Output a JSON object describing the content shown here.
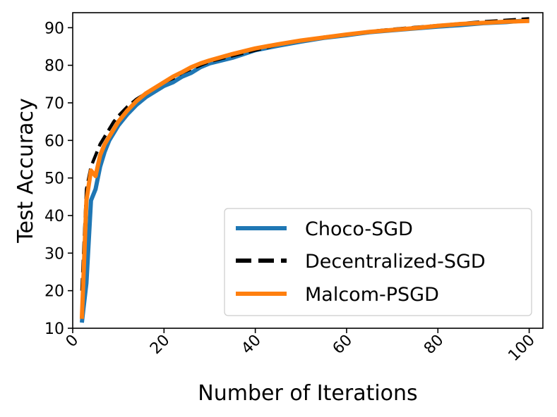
{
  "chart_data": {
    "type": "line",
    "title": "",
    "xlabel": "Number of Iterations",
    "ylabel": "Test Accuracy",
    "xlim": [
      0,
      103
    ],
    "ylim": [
      10,
      94
    ],
    "xticks": [
      0,
      20,
      40,
      60,
      80,
      100
    ],
    "yticks": [
      10,
      20,
      30,
      40,
      50,
      60,
      70,
      80,
      90
    ],
    "x_tick_rotation": "45 degrees",
    "grid": false,
    "legend_position": "lower-right",
    "x": [
      2,
      3,
      4,
      5,
      6,
      7,
      8,
      9,
      10,
      12,
      14,
      16,
      18,
      20,
      22,
      24,
      26,
      28,
      30,
      35,
      40,
      45,
      50,
      55,
      60,
      65,
      70,
      75,
      80,
      85,
      90,
      95,
      100
    ],
    "series": [
      {
        "name": "Choco-SGD",
        "color": "#1f77b4",
        "style": "solid",
        "values": [
          11.5,
          22,
          44,
          47,
          53,
          57,
          60,
          62,
          64,
          67,
          69.5,
          71.5,
          73,
          74.5,
          75.5,
          77,
          78,
          79.5,
          80.5,
          82,
          84,
          85.2,
          86.3,
          87.3,
          88,
          88.8,
          89.3,
          89.8,
          90.3,
          90.7,
          91.2,
          91.5,
          92
        ]
      },
      {
        "name": "Decentralized-SGD",
        "color": "#000000",
        "style": "dashed",
        "values": [
          20,
          47,
          53,
          56,
          59,
          61,
          63,
          65,
          66.5,
          69,
          71,
          72.5,
          74,
          75.5,
          76.5,
          78,
          79,
          80,
          81,
          82.5,
          84,
          85.5,
          86.5,
          87.5,
          88.2,
          89,
          89.6,
          90.1,
          90.6,
          91.1,
          91.6,
          92,
          92.4
        ]
      },
      {
        "name": "Malcom-PSGD",
        "color": "#ff7f0e",
        "style": "solid",
        "values": [
          12.5,
          44,
          52,
          50.5,
          56,
          59,
          61,
          63,
          65,
          68,
          70.5,
          72.5,
          74,
          75.5,
          77,
          78.2,
          79.5,
          80.5,
          81.3,
          83,
          84.5,
          85.6,
          86.6,
          87.4,
          88.2,
          88.9,
          89.4,
          89.9,
          90.5,
          91,
          91.3,
          91.6,
          91.8
        ]
      }
    ]
  }
}
